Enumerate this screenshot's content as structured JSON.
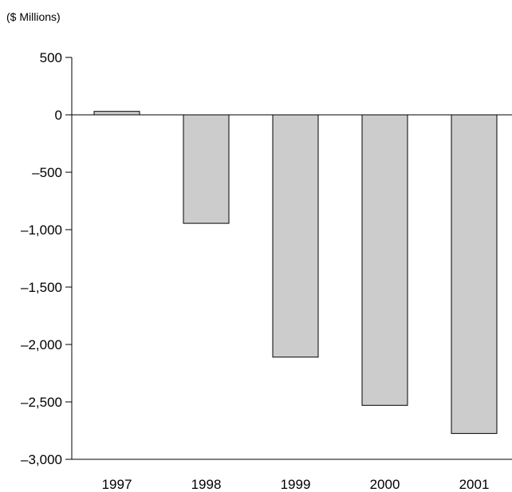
{
  "chart_data": {
    "type": "bar",
    "title": "",
    "subtitle": "($ Millions)",
    "xlabel": "",
    "ylabel": "",
    "categories": [
      "1997",
      "1998",
      "1999",
      "2000",
      "2001"
    ],
    "values": [
      30,
      -945,
      -2110,
      -2530,
      -2775
    ],
    "ylim": [
      -3000,
      500
    ],
    "yticks": [
      500,
      0,
      -500,
      -1000,
      -1500,
      -2000,
      -2500,
      -3000
    ],
    "ytick_labels": [
      "500",
      "0",
      "–500",
      "–1,000",
      "–1,500",
      "–2,000",
      "–2,500",
      "–3,000"
    ],
    "grid": false,
    "legend": "none",
    "bar_color": "#cccccc",
    "axis_color": "#000000"
  }
}
